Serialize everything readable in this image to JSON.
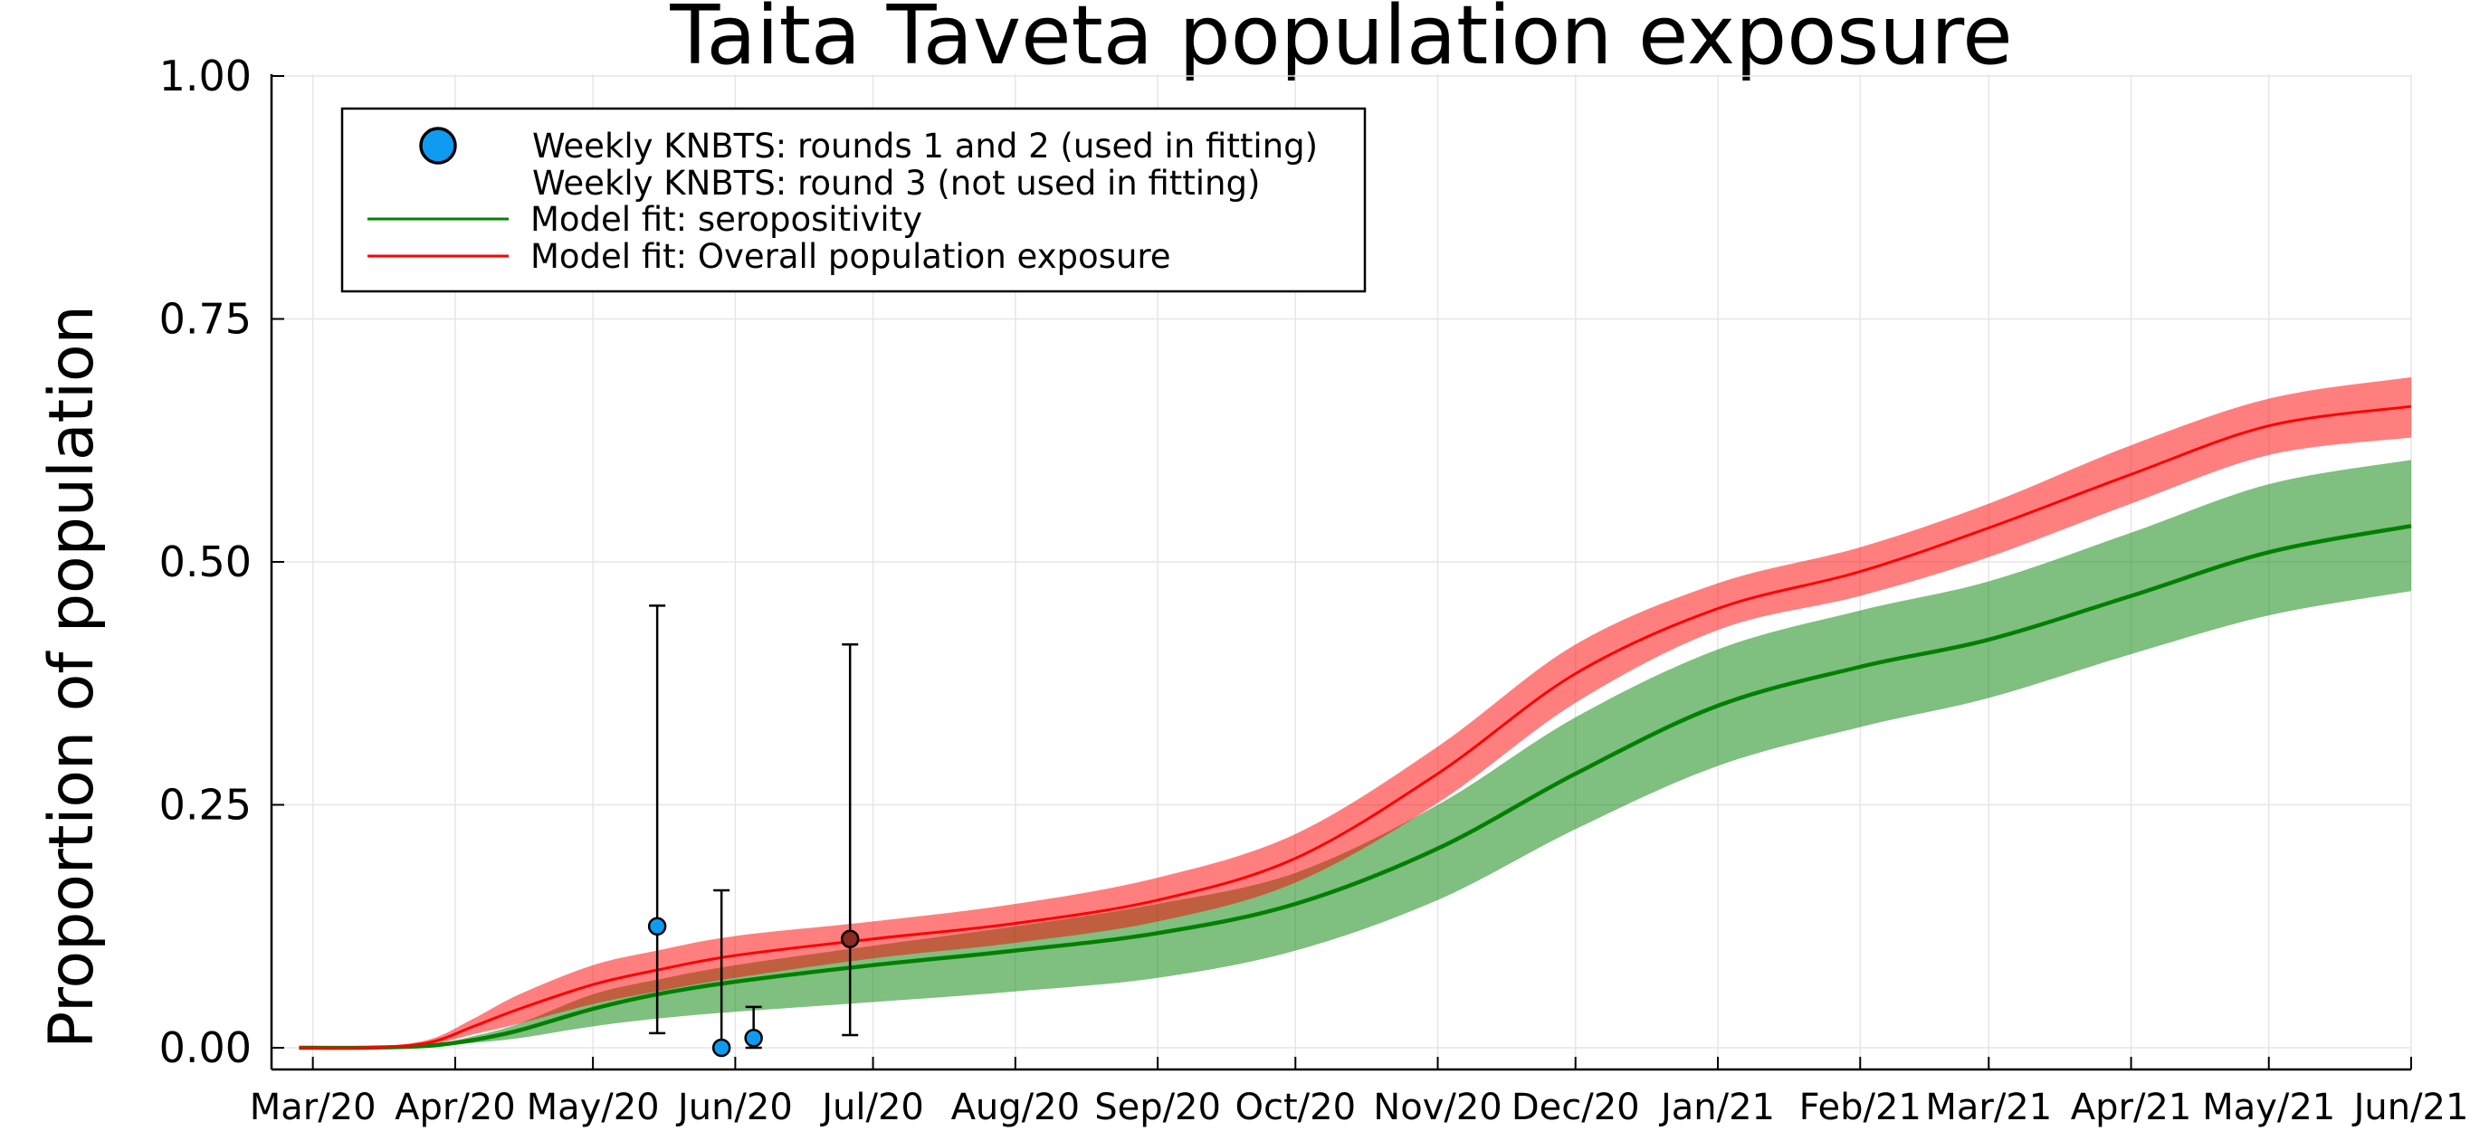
{
  "chart_data": {
    "type": "line",
    "title": "Taita Taveta population exposure",
    "xlabel": "",
    "ylabel": "Proportion of population",
    "ylim": [
      0,
      1
    ],
    "xlim": [
      "2020-02-21",
      "2021-06-01"
    ],
    "grid": true,
    "legend_position": "top-left",
    "x_ticks": [
      {
        "date": "2020-03-01",
        "label": "Mar/20"
      },
      {
        "date": "2020-04-01",
        "label": "Apr/20"
      },
      {
        "date": "2020-05-01",
        "label": "May/20"
      },
      {
        "date": "2020-06-01",
        "label": "Jun/20"
      },
      {
        "date": "2020-07-01",
        "label": "Jul/20"
      },
      {
        "date": "2020-08-01",
        "label": "Aug/20"
      },
      {
        "date": "2020-09-01",
        "label": "Sep/20"
      },
      {
        "date": "2020-10-01",
        "label": "Oct/20"
      },
      {
        "date": "2020-11-01",
        "label": "Nov/20"
      },
      {
        "date": "2020-12-01",
        "label": "Dec/20"
      },
      {
        "date": "2021-01-01",
        "label": "Jan/21"
      },
      {
        "date": "2021-02-01",
        "label": "Feb/21"
      },
      {
        "date": "2021-03-01",
        "label": "Mar/21"
      },
      {
        "date": "2021-04-01",
        "label": "Apr/21"
      },
      {
        "date": "2021-05-01",
        "label": "May/21"
      },
      {
        "date": "2021-06-01",
        "label": "Jun/21"
      }
    ],
    "y_ticks": [
      {
        "value": 0,
        "label": "0.00"
      },
      {
        "value": 0.25,
        "label": "0.25"
      },
      {
        "value": 0.5,
        "label": "0.50"
      },
      {
        "value": 0.75,
        "label": "0.75"
      },
      {
        "value": 1,
        "label": "1.00"
      }
    ],
    "series": [
      {
        "name": "Weekly KNBTS: rounds 1 and 2 (used in fitting)",
        "kind": "scatter",
        "color": "#0F9BF2",
        "points": [
          {
            "x": "2020-05-15",
            "y": 0.125,
            "lo": 0.015,
            "hi": 0.455
          },
          {
            "x": "2020-05-29",
            "y": 0.0,
            "lo": 0.0,
            "hi": 0.162
          },
          {
            "x": "2020-06-05",
            "y": 0.01,
            "lo": 0.0,
            "hi": 0.042
          }
        ]
      },
      {
        "name": "Weekly KNBTS: round 3 (not used in fitting)",
        "kind": "scatter",
        "color": "#8B2A1E",
        "points": [
          {
            "x": "2020-06-26",
            "y": 0.112,
            "lo": 0.013,
            "hi": 0.415
          }
        ]
      },
      {
        "name": "Model fit: seropositivity",
        "kind": "line",
        "color": "#008000",
        "band_color": "#008000",
        "x": [
          "2020-02-27",
          "2020-03-12",
          "2020-03-26",
          "2020-04-05",
          "2020-04-15",
          "2020-05-01",
          "2020-05-15",
          "2020-06-01",
          "2020-07-01",
          "2020-08-01",
          "2020-09-01",
          "2020-10-01",
          "2020-11-01",
          "2020-12-01",
          "2021-01-01",
          "2021-02-01",
          "2021-03-01",
          "2021-04-01",
          "2021-05-01",
          "2021-06-01"
        ],
        "y": [
          0.0,
          0.0,
          0.002,
          0.008,
          0.018,
          0.04,
          0.055,
          0.068,
          0.085,
          0.1,
          0.118,
          0.148,
          0.205,
          0.282,
          0.352,
          0.392,
          0.42,
          0.465,
          0.51,
          0.537
        ],
        "lower": [
          0.0,
          0.0,
          0.001,
          0.005,
          0.01,
          0.022,
          0.03,
          0.037,
          0.047,
          0.058,
          0.072,
          0.1,
          0.152,
          0.225,
          0.29,
          0.33,
          0.36,
          0.405,
          0.445,
          0.47
        ],
        "upper": [
          0.0,
          0.0,
          0.003,
          0.012,
          0.025,
          0.055,
          0.07,
          0.085,
          0.105,
          0.125,
          0.148,
          0.18,
          0.25,
          0.34,
          0.41,
          0.45,
          0.48,
          0.53,
          0.58,
          0.605
        ]
      },
      {
        "name": "Model fit: Overall population exposure",
        "kind": "line",
        "color": "#FF0000",
        "band_color": "#FF0000",
        "x": [
          "2020-02-27",
          "2020-03-12",
          "2020-03-26",
          "2020-04-05",
          "2020-04-15",
          "2020-05-01",
          "2020-05-15",
          "2020-06-01",
          "2020-07-01",
          "2020-08-01",
          "2020-09-01",
          "2020-10-01",
          "2020-11-01",
          "2020-12-01",
          "2021-01-01",
          "2021-02-01",
          "2021-03-01",
          "2021-04-01",
          "2021-05-01",
          "2021-06-01"
        ],
        "y": [
          0.0,
          0.0,
          0.005,
          0.022,
          0.04,
          0.065,
          0.08,
          0.095,
          0.112,
          0.128,
          0.152,
          0.195,
          0.282,
          0.385,
          0.452,
          0.49,
          0.535,
          0.59,
          0.64,
          0.66
        ],
        "lower": [
          0.0,
          0.0,
          0.003,
          0.014,
          0.025,
          0.045,
          0.058,
          0.072,
          0.092,
          0.108,
          0.13,
          0.17,
          0.252,
          0.355,
          0.43,
          0.465,
          0.505,
          0.56,
          0.61,
          0.628
        ],
        "upper": [
          0.0,
          0.0,
          0.008,
          0.03,
          0.055,
          0.085,
          0.1,
          0.115,
          0.13,
          0.148,
          0.175,
          0.22,
          0.31,
          0.415,
          0.478,
          0.515,
          0.56,
          0.62,
          0.668,
          0.69
        ]
      }
    ]
  }
}
